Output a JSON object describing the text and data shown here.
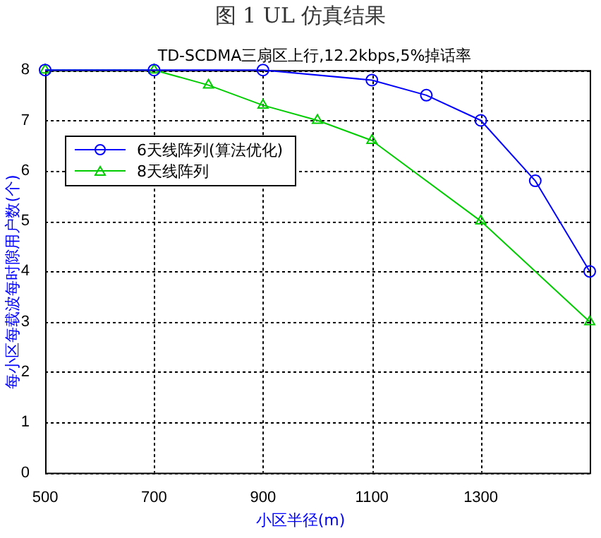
{
  "chart_data": {
    "type": "line",
    "title": "图 1 UL 仿真结果",
    "subtitle": "TD-SCDMA三扇区上行,12.2kbps,5%掉话率",
    "xlabel": "小区半径(m)",
    "ylabel": "每小区每载波每时隙用户数(个)",
    "xlim": [
      500,
      1500
    ],
    "xticks": [
      500,
      700,
      900,
      1100,
      1300
    ],
    "ylim": [
      0,
      8
    ],
    "yticks": [
      0,
      1,
      2,
      3,
      4,
      5,
      6,
      7,
      8
    ],
    "grid": true,
    "legend": "top left",
    "line_style": "solid",
    "series": [
      {
        "name": "6天线阵列(算法优化)",
        "color": "#0000ff",
        "marker": "circle",
        "x": [
          500,
          700,
          900,
          1100,
          1200,
          1300,
          1400,
          1500
        ],
        "values": [
          8,
          8,
          8,
          7.8,
          7.5,
          7.0,
          5.8,
          4.0
        ]
      },
      {
        "name": "8天线阵列",
        "color": "#00cc00",
        "marker": "triangle",
        "x": [
          500,
          700,
          800,
          900,
          1000,
          1100,
          1300,
          1500
        ],
        "values": [
          8,
          8,
          7.7,
          7.3,
          7.0,
          6.6,
          5.0,
          3.0
        ]
      }
    ]
  }
}
